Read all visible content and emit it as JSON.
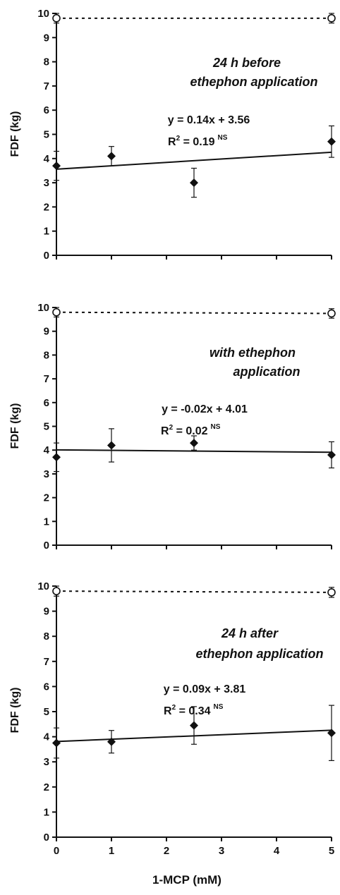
{
  "chart_data": [
    {
      "type": "scatter",
      "annotation": [
        "24 h before",
        "ethephon application"
      ],
      "equation": "y = 0.14x + 3.56",
      "r2_text": "R",
      "r2_value": " = 0.19",
      "significance": "NS",
      "fit": {
        "slope": 0.14,
        "intercept": 3.56
      },
      "ylim": [
        0,
        10
      ],
      "xlim": [
        0,
        5
      ],
      "yticks": [
        "0",
        "1",
        "2",
        "3",
        "4",
        "5",
        "6",
        "7",
        "8",
        "9",
        "10"
      ],
      "ylabel": "FDF (kg)",
      "series": [
        {
          "marker": "diamond",
          "x": [
            0,
            1,
            2.5,
            5
          ],
          "y": [
            3.7,
            4.1,
            3.0,
            4.7
          ],
          "err": [
            0.6,
            0.4,
            0.6,
            0.65
          ]
        },
        {
          "marker": "open-circle",
          "x": [
            0,
            5
          ],
          "y": [
            9.8,
            9.8
          ],
          "err": [
            0.2,
            0.2
          ]
        }
      ]
    },
    {
      "type": "scatter",
      "annotation": [
        "with ethephon",
        "application"
      ],
      "equation": "y = -0.02x + 4.01",
      "r2_text": "R",
      "r2_value": " = 0.02",
      "significance": "NS",
      "fit": {
        "slope": -0.02,
        "intercept": 4.01
      },
      "ylim": [
        0,
        10
      ],
      "xlim": [
        0,
        5
      ],
      "yticks": [
        "0",
        "1",
        "2",
        "3",
        "4",
        "5",
        "6",
        "7",
        "8",
        "9",
        "10"
      ],
      "ylabel": "FDF (kg)",
      "series": [
        {
          "marker": "diamond",
          "x": [
            0,
            1,
            2.5,
            5
          ],
          "y": [
            3.7,
            4.2,
            4.3,
            3.8
          ],
          "err": [
            0.6,
            0.7,
            0.3,
            0.55
          ]
        },
        {
          "marker": "open-circle",
          "x": [
            0,
            5
          ],
          "y": [
            9.8,
            9.75
          ],
          "err": [
            0.2,
            0.2
          ]
        }
      ]
    },
    {
      "type": "scatter",
      "annotation": [
        "24 h after",
        "ethephon application"
      ],
      "equation": "y = 0.09x + 3.81",
      "r2_text": "R",
      "r2_value": " = 0.34",
      "significance": "NS",
      "fit": {
        "slope": 0.09,
        "intercept": 3.81
      },
      "ylim": [
        0,
        10
      ],
      "xlim": [
        0,
        5
      ],
      "yticks": [
        "0",
        "1",
        "2",
        "3",
        "4",
        "5",
        "6",
        "7",
        "8",
        "9",
        "10"
      ],
      "ylabel": "FDF (kg)",
      "xticks": [
        "0",
        "1",
        "2",
        "3",
        "4",
        "5"
      ],
      "xlabel": "1-MCP (mM)",
      "series": [
        {
          "marker": "diamond",
          "x": [
            0,
            1,
            2.5,
            5
          ],
          "y": [
            3.75,
            3.8,
            4.45,
            4.15
          ],
          "err": [
            0.6,
            0.45,
            0.75,
            1.1
          ]
        },
        {
          "marker": "open-circle",
          "x": [
            0,
            5
          ],
          "y": [
            9.8,
            9.75
          ],
          "err": [
            0.2,
            0.2
          ]
        }
      ]
    }
  ]
}
